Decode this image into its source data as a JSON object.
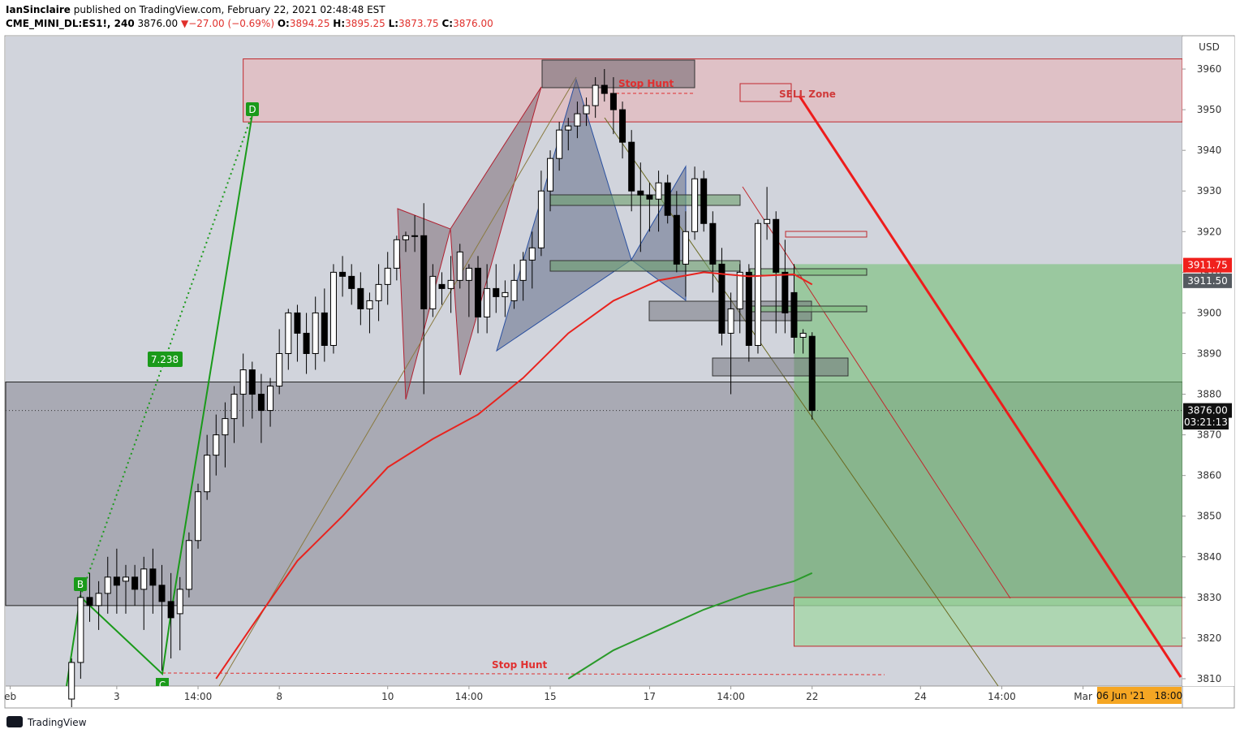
{
  "header": {
    "author": "IanSinclaire",
    "published": "published on TradingView.com, February 22, 2021 02:48:48 EST",
    "symbol": "CME_MINI_DL:ES1!, 240",
    "last": "3876.00",
    "arrow": "▼",
    "change": "−27.00 (−0.69%)",
    "o_label": "O:",
    "o": "3894.25",
    "h_label": "H:",
    "h": "3895.25",
    "l_label": "L:",
    "l": "3873.75",
    "c_label": "C:",
    "c": "3876.00"
  },
  "chart_data": {
    "type": "candlestick",
    "currency": "USD",
    "xlim": [
      -7.3,
      123
    ],
    "ylim": [
      3808.2,
      3968
    ],
    "yticks": [
      3810,
      3820,
      3830,
      3840,
      3850,
      3860,
      3870,
      3880,
      3890,
      3900,
      3910,
      3920,
      3930,
      3940,
      3950,
      3960
    ],
    "xticks": [
      {
        "value": -6.8,
        "label": "eb"
      },
      {
        "value": 5,
        "label": "3"
      },
      {
        "value": 14,
        "label": "14:00"
      },
      {
        "value": 23,
        "label": "8"
      },
      {
        "value": 35,
        "label": "10"
      },
      {
        "value": 44,
        "label": "14:00"
      },
      {
        "value": 53,
        "label": "15"
      },
      {
        "value": 64,
        "label": "17"
      },
      {
        "value": 73,
        "label": "14:00"
      },
      {
        "value": 82,
        "label": "22"
      },
      {
        "value": 94,
        "label": "24"
      },
      {
        "value": 103,
        "label": "14:00"
      },
      {
        "value": 112,
        "label": "Mar"
      }
    ],
    "up_color": "#ffffff",
    "down_color": "#000000",
    "ohlc": [
      [
        3805,
        3815,
        3803,
        3814
      ],
      [
        3814,
        3832,
        3810,
        3830
      ],
      [
        3830,
        3836,
        3824,
        3828
      ],
      [
        3828,
        3834,
        3822,
        3831
      ],
      [
        3831,
        3840,
        3826,
        3835
      ],
      [
        3835,
        3842,
        3826,
        3833
      ],
      [
        3834,
        3838,
        3826,
        3835
      ],
      [
        3835,
        3838,
        3828,
        3832
      ],
      [
        3832,
        3840,
        3822,
        3837
      ],
      [
        3837,
        3842,
        3826,
        3833
      ],
      [
        3833,
        3838,
        3812,
        3829
      ],
      [
        3829,
        3836,
        3815,
        3825
      ],
      [
        3826,
        3835,
        3817,
        3832
      ],
      [
        3832,
        3846,
        3830,
        3844
      ],
      [
        3844,
        3858,
        3842,
        3856
      ],
      [
        3856,
        3870,
        3854,
        3865
      ],
      [
        3865,
        3875,
        3860,
        3870
      ],
      [
        3870,
        3878,
        3862,
        3874
      ],
      [
        3874,
        3882,
        3868,
        3880
      ],
      [
        3880,
        3890,
        3872,
        3886
      ],
      [
        3886,
        3888,
        3874,
        3880
      ],
      [
        3880,
        3885,
        3868,
        3876
      ],
      [
        3876,
        3884,
        3872,
        3882
      ],
      [
        3882,
        3896,
        3880,
        3890
      ],
      [
        3890,
        3901,
        3886,
        3900
      ],
      [
        3900,
        3902,
        3888,
        3895
      ],
      [
        3895,
        3900,
        3885,
        3890
      ],
      [
        3890,
        3904,
        3886,
        3900
      ],
      [
        3900,
        3906,
        3888,
        3892
      ],
      [
        3892,
        3912,
        3890,
        3910
      ],
      [
        3910,
        3914,
        3904,
        3909
      ],
      [
        3909,
        3912,
        3902,
        3906
      ],
      [
        3906,
        3910,
        3897,
        3901
      ],
      [
        3901,
        3905,
        3895,
        3903
      ],
      [
        3903,
        3912,
        3898,
        3907
      ],
      [
        3907,
        3915,
        3902,
        3911
      ],
      [
        3911,
        3919,
        3908,
        3918
      ],
      [
        3918,
        3920,
        3915,
        3919
      ],
      [
        3919,
        3924,
        3915,
        3919
      ],
      [
        3919,
        3927,
        3880,
        3901
      ],
      [
        3901,
        3912,
        3899,
        3909
      ],
      [
        3907,
        3910,
        3902,
        3906
      ],
      [
        3906,
        3914,
        3900,
        3908
      ],
      [
        3908,
        3917,
        3906,
        3915
      ],
      [
        3908,
        3912,
        3899,
        3911
      ],
      [
        3911,
        3914,
        3895,
        3899
      ],
      [
        3899,
        3912,
        3895,
        3906
      ],
      [
        3906,
        3912,
        3900,
        3904
      ],
      [
        3904,
        3908,
        3899,
        3905
      ],
      [
        3903,
        3912,
        3901,
        3908
      ],
      [
        3908,
        3915,
        3903,
        3913
      ],
      [
        3913,
        3920,
        3906,
        3916
      ],
      [
        3916,
        3935,
        3914,
        3930
      ],
      [
        3930,
        3940,
        3925,
        3938
      ],
      [
        3938,
        3947,
        3935,
        3945
      ],
      [
        3945,
        3948,
        3940,
        3946
      ],
      [
        3946,
        3952,
        3943,
        3949
      ],
      [
        3949,
        3953,
        3946,
        3951
      ],
      [
        3951,
        3958,
        3948,
        3956
      ],
      [
        3956,
        3960,
        3952,
        3954
      ],
      [
        3954,
        3958,
        3944,
        3950
      ],
      [
        3950,
        3952,
        3938,
        3942
      ],
      [
        3942,
        3945,
        3925,
        3930
      ],
      [
        3930,
        3937,
        3915,
        3929
      ],
      [
        3929,
        3932,
        3920,
        3928
      ],
      [
        3928,
        3935,
        3920,
        3932
      ],
      [
        3932,
        3934,
        3922,
        3924
      ],
      [
        3924,
        3930,
        3910,
        3912
      ],
      [
        3912,
        3925,
        3904,
        3920
      ],
      [
        3920,
        3936,
        3918,
        3933
      ],
      [
        3933,
        3935,
        3920,
        3922
      ],
      [
        3922,
        3925,
        3905,
        3912
      ],
      [
        3912,
        3916,
        3892,
        3895
      ],
      [
        3895,
        3905,
        3880,
        3901
      ],
      [
        3901,
        3912,
        3895,
        3910
      ],
      [
        3910,
        3912,
        3888,
        3892
      ],
      [
        3892,
        3923,
        3890,
        3922
      ],
      [
        3922,
        3931,
        3918,
        3923
      ],
      [
        3923,
        3925,
        3895,
        3910
      ],
      [
        3910,
        3918,
        3895,
        3900
      ],
      [
        3905,
        3912,
        3890,
        3894
      ],
      [
        3894,
        3896,
        3890,
        3895
      ],
      [
        3894.25,
        3895.25,
        3873.75,
        3876.0
      ]
    ],
    "lines": [
      {
        "color": "#e8231e",
        "x": [
          16,
          20,
          25,
          30,
          35,
          40,
          45,
          50,
          55,
          60,
          65,
          70,
          75,
          80,
          82
        ],
        "values": [
          3810,
          3823,
          3839,
          3850,
          3862,
          3869,
          3875,
          3884,
          3895,
          3903,
          3908,
          3910,
          3909,
          3909.5,
          3907
        ]
      },
      {
        "color": "#2a9a2a",
        "x": [
          55,
          60,
          65,
          70,
          75,
          80,
          82
        ],
        "values": [
          3810,
          3817,
          3822,
          3827,
          3831,
          3834,
          3836
        ]
      }
    ],
    "zones": [
      {
        "x0": 19,
        "y": [
          3947,
          3962.5
        ],
        "fill": "rgba(240,170,170,0.45)",
        "stroke": "#c0282d"
      },
      {
        "x0": -7.3,
        "y": [
          3828,
          3883
        ],
        "fill": "rgba(120,120,130,0.45)",
        "stroke": "#222"
      },
      {
        "x0": 80,
        "y": [
          3828,
          3912
        ],
        "fill": "rgba(110,190,110,0.55)",
        "stroke": "none"
      },
      {
        "x0": 80,
        "y": [
          3818,
          3830
        ],
        "fill": "rgba(160,215,160,0.7)",
        "stroke": "#c0282d"
      }
    ],
    "price_labels": [
      {
        "value": 3911.75,
        "label": "3911.75",
        "color": "#f0201c"
      },
      {
        "value": 3911.5,
        "label": "3911.50",
        "color": "#555a60"
      },
      {
        "value": 3876,
        "label": "3876.00",
        "color": "#111"
      }
    ],
    "countdown": "03:21:13",
    "date_label": "06 Jun '21   18:00",
    "annotations": {
      "d": "D",
      "b": "B",
      "c": "C",
      "ratio": "7.238",
      "stop_hunt_top": "Stop Hunt",
      "stop_hunt_bottom": "Stop Hunt",
      "sell_zone": "SELL Zone"
    }
  },
  "footer": {
    "brand": "TradingView"
  }
}
